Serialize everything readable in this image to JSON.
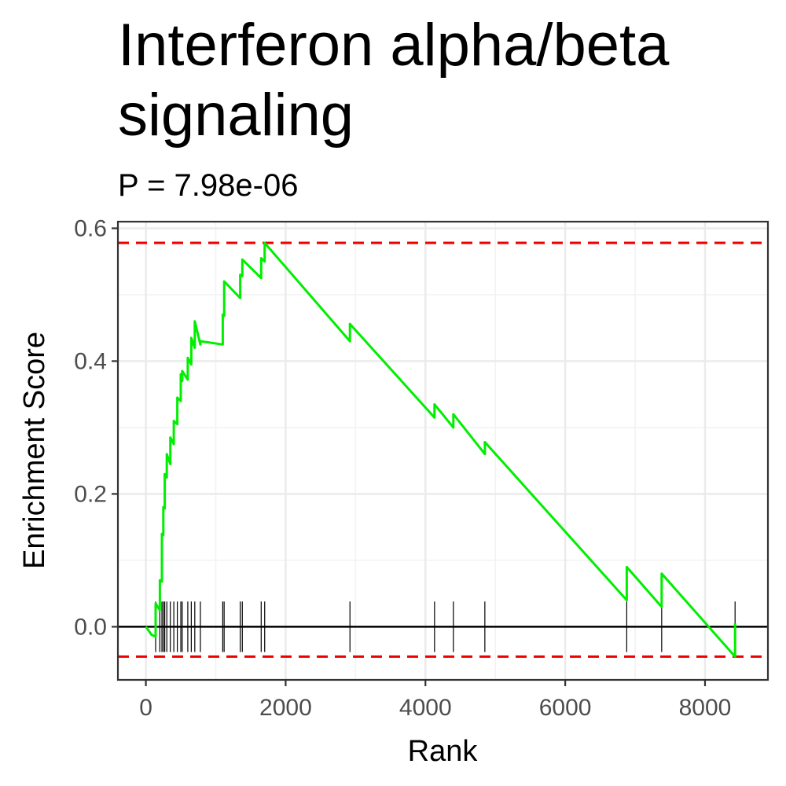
{
  "chart_data": {
    "type": "line",
    "title_lines": [
      "Interferon alpha/beta",
      "signaling"
    ],
    "subtitle": "P = 7.98e-06",
    "xlabel": "Rank",
    "ylabel": "Enrichment Score",
    "xlim": [
      -400,
      8900
    ],
    "ylim": [
      -0.08,
      0.61
    ],
    "x_ticks": [
      0,
      2000,
      4000,
      6000,
      8000
    ],
    "x_tick_labels": [
      "0",
      "2000",
      "4000",
      "6000",
      "8000"
    ],
    "y_ticks": [
      0.0,
      0.2,
      0.4,
      0.6
    ],
    "y_tick_labels": [
      "0.0",
      "0.2",
      "0.4",
      "0.6"
    ],
    "grid": true,
    "reference_lines": {
      "zero": 0.0,
      "max_es": 0.578,
      "min_es": -0.045,
      "dashed_color": "#ee0000"
    },
    "curve_color": "#00ee00",
    "hit_ranks": [
      140,
      200,
      230,
      250,
      270,
      300,
      350,
      400,
      450,
      500,
      520,
      600,
      650,
      700,
      780,
      1100,
      1120,
      1350,
      1380,
      1650,
      1700,
      2920,
      4130,
      4400,
      4850,
      6880,
      7380,
      8430
    ],
    "series": [
      {
        "x": [
          0,
          80,
          140,
          140,
          200,
          200,
          230,
          230,
          250,
          250,
          270,
          270,
          300,
          300,
          350,
          350,
          400,
          400,
          450,
          450,
          500,
          500,
          520,
          520,
          600,
          600,
          650,
          650,
          700,
          700,
          780,
          780,
          1100,
          1100,
          1120,
          1120,
          1350,
          1350,
          1380,
          1380,
          1650,
          1650,
          1700,
          1700,
          2920,
          2920,
          4130,
          4130,
          4400,
          4400,
          4850,
          4850,
          6880,
          6880,
          7380,
          7380,
          8430,
          8430
        ],
        "y": [
          0.0,
          -0.012,
          -0.015,
          0.035,
          0.025,
          0.07,
          0.068,
          0.14,
          0.138,
          0.18,
          0.178,
          0.23,
          0.225,
          0.26,
          0.245,
          0.285,
          0.275,
          0.31,
          0.305,
          0.345,
          0.34,
          0.38,
          0.37,
          0.385,
          0.372,
          0.405,
          0.395,
          0.435,
          0.42,
          0.46,
          0.425,
          0.43,
          0.425,
          0.47,
          0.468,
          0.52,
          0.495,
          0.53,
          0.528,
          0.553,
          0.525,
          0.555,
          0.55,
          0.578,
          0.43,
          0.456,
          0.315,
          0.335,
          0.3,
          0.32,
          0.26,
          0.278,
          0.04,
          0.09,
          0.03,
          0.08,
          -0.045,
          0.005
        ]
      }
    ]
  }
}
